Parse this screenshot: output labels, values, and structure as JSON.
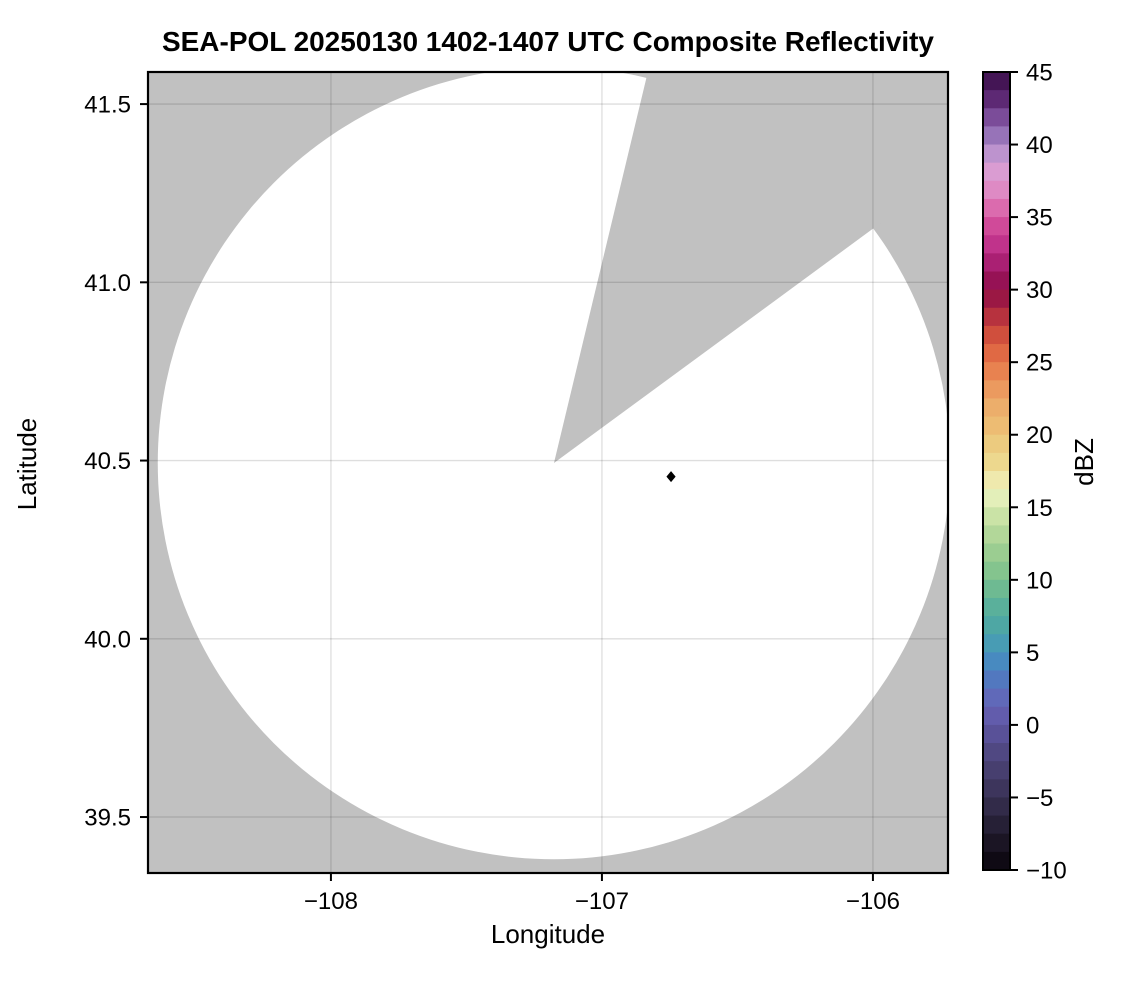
{
  "title": "SEA-POL 20250130 1402-1407 UTC Composite Reflectivity",
  "axes": {
    "xlabel": "Longitude",
    "ylabel": "Latitude",
    "x_tick_labels": [
      "−108",
      "−107",
      "−106"
    ],
    "y_tick_labels": [
      "41.5",
      "41.0",
      "40.5",
      "40.0",
      "39.5"
    ]
  },
  "colorbar": {
    "label": "dBZ",
    "tick_labels": [
      "45",
      "40",
      "35",
      "30",
      "25",
      "20",
      "15",
      "10",
      "5",
      "0",
      "−5",
      "−10"
    ]
  },
  "chart_data": {
    "type": "heatmap",
    "subtype": "radar-ppi-composite",
    "title": "SEA-POL 20250130 1402-1407 UTC Composite Reflectivity",
    "xlabel": "Longitude",
    "ylabel": "Latitude",
    "xlim": [
      -108.675,
      -105.723
    ],
    "ylim": [
      39.343,
      41.59
    ],
    "x_tick_values": [
      -108,
      -107,
      -106
    ],
    "y_tick_values": [
      41.5,
      41.0,
      40.5,
      40.0,
      39.5
    ],
    "grid": true,
    "grid_color_rgba": "rgba(0,0,0,0.13)",
    "masked_background_color": "#c1c1c1",
    "coverage_fill_color": "#ffffff",
    "frame_color": "#000000",
    "radar": {
      "center_lon": -107.177,
      "center_lat": 40.493,
      "range_radius_deg_lon": 1.462,
      "coverage_note": "white disk = scanned area with no echoes above minimum",
      "blocked_sector_azimuth_deg": [
        13.5,
        53.7
      ]
    },
    "marker": {
      "shape": "diamond",
      "color": "#000000",
      "lon": -106.745,
      "lat": 40.455
    },
    "colorbar": {
      "label": "dBZ",
      "min": -10,
      "max": 45,
      "n_bands": 44,
      "band_step_dbz": 1.25,
      "tick_values": [
        45,
        40,
        35,
        30,
        25,
        20,
        15,
        10,
        5,
        0,
        -5,
        -10
      ],
      "legend_position": "right",
      "stops": [
        [
          -10.0,
          "#08050c"
        ],
        [
          -8.75,
          "#150f1c"
        ],
        [
          -7.5,
          "#201a2c"
        ],
        [
          -6.25,
          "#2c2540"
        ],
        [
          -5.0,
          "#373052"
        ],
        [
          -3.75,
          "#423a66"
        ],
        [
          -2.5,
          "#4b4377"
        ],
        [
          -1.25,
          "#544c8c"
        ],
        [
          0.0,
          "#5e55a4"
        ],
        [
          1.25,
          "#6562b4"
        ],
        [
          2.5,
          "#5a70bd"
        ],
        [
          3.75,
          "#4a80c0"
        ],
        [
          5.0,
          "#4694c0"
        ],
        [
          6.25,
          "#4aa3a8"
        ],
        [
          7.5,
          "#51ab9f"
        ],
        [
          8.75,
          "#63b496"
        ],
        [
          10.0,
          "#78bf8e"
        ],
        [
          11.25,
          "#8fc88e"
        ],
        [
          12.5,
          "#a6d194"
        ],
        [
          13.75,
          "#bedd9e"
        ],
        [
          15.0,
          "#d5e9ad"
        ],
        [
          16.25,
          "#f0f4c4"
        ],
        [
          17.5,
          "#eedd96"
        ],
        [
          18.75,
          "#ecd285"
        ],
        [
          20.0,
          "#ecc378"
        ],
        [
          21.25,
          "#edb56d"
        ],
        [
          22.5,
          "#eba669"
        ],
        [
          23.75,
          "#ea8d55"
        ],
        [
          25.0,
          "#e5764a"
        ],
        [
          26.25,
          "#da5c3d"
        ],
        [
          27.5,
          "#c6413c"
        ],
        [
          28.75,
          "#a82340"
        ],
        [
          30.0,
          "#8e0c48"
        ],
        [
          31.25,
          "#9e1762"
        ],
        [
          32.5,
          "#b62884"
        ],
        [
          33.75,
          "#c93d92"
        ],
        [
          35.0,
          "#d6569f"
        ],
        [
          36.25,
          "#e07fbd"
        ],
        [
          37.5,
          "#dc95cb"
        ],
        [
          38.75,
          "#d7a3d9"
        ],
        [
          40.0,
          "#a383c2"
        ],
        [
          41.25,
          "#8a63ad"
        ],
        [
          42.5,
          "#6b3585"
        ],
        [
          43.75,
          "#4f1c62"
        ],
        [
          45.0,
          "#380d47"
        ]
      ]
    }
  }
}
